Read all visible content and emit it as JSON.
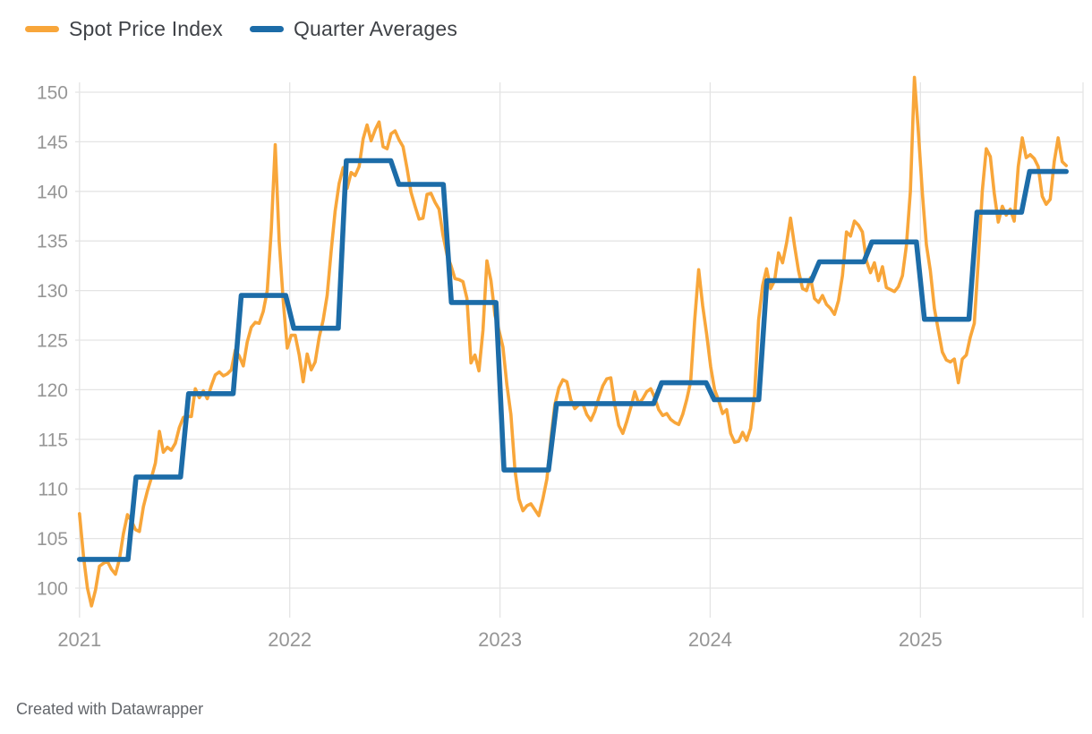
{
  "legend": {
    "items": [
      {
        "label": "Spot Price Index",
        "color": "#F8A63A"
      },
      {
        "label": "Quarter Averages",
        "color": "#1C6CA8"
      }
    ]
  },
  "footer": {
    "text": "Created with Datawrapper"
  },
  "colors": {
    "background": "#ffffff",
    "grid": "#e4e4e4",
    "axis_text": "#969696",
    "legend_text": "#3f4247",
    "footer_text": "#63666b",
    "spot_line": "#F8A63A",
    "quarter_line": "#1C6CA8"
  },
  "chart_data": {
    "type": "line",
    "title": "",
    "xlabel": "",
    "ylabel": "",
    "grid": true,
    "legend_position": "top-left",
    "x_axis": {
      "tick_labels": [
        "2021",
        "2022",
        "2023",
        "2024",
        "2025"
      ],
      "unit": "year"
    },
    "y_axis": {
      "tick_values": [
        100,
        105,
        110,
        115,
        120,
        125,
        130,
        135,
        140,
        145,
        150
      ],
      "range": [
        97,
        152.5
      ]
    },
    "series": [
      {
        "name": "Spot Price Index",
        "type": "line",
        "cadence": "weekly",
        "color": "#F8A63A",
        "values": [
          107.5,
          103.2,
          100.0,
          98.2,
          99.8,
          102.2,
          102.5,
          102.7,
          101.9,
          101.4,
          102.9,
          105.5,
          107.4,
          106.8,
          105.9,
          105.7,
          108.2,
          109.8,
          111.1,
          112.6,
          115.8,
          113.7,
          114.2,
          113.9,
          114.6,
          116.2,
          117.2,
          117.3,
          117.3,
          120.1,
          119.2,
          119.9,
          119.1,
          120.4,
          121.5,
          121.8,
          121.4,
          121.6,
          122.0,
          124.0,
          123.4,
          122.4,
          124.8,
          126.3,
          126.8,
          126.7,
          127.9,
          130.0,
          136.0,
          144.7,
          135.0,
          129.0,
          124.2,
          125.5,
          125.5,
          123.5,
          120.8,
          123.6,
          122.0,
          122.8,
          125.3,
          127.0,
          129.5,
          134.0,
          138.0,
          140.8,
          142.4,
          140.3,
          141.9,
          141.6,
          142.5,
          145.3,
          146.7,
          145.1,
          146.2,
          147.0,
          144.5,
          144.3,
          145.8,
          146.1,
          145.2,
          144.5,
          142.3,
          139.9,
          138.5,
          137.2,
          137.3,
          139.7,
          139.8,
          138.9,
          138.2,
          135.6,
          133.6,
          132.5,
          131.2,
          131.1,
          130.9,
          129.2,
          122.7,
          123.5,
          121.9,
          126.0,
          133.0,
          131.0,
          127.5,
          126.0,
          124.3,
          120.5,
          117.5,
          111.9,
          109.0,
          107.8,
          108.3,
          108.5,
          107.9,
          107.3,
          109.0,
          111.0,
          115.0,
          118.5,
          120.2,
          121.0,
          120.8,
          119.0,
          118.1,
          118.5,
          118.6,
          117.5,
          116.9,
          117.8,
          119.2,
          120.4,
          121.1,
          121.2,
          118.5,
          116.4,
          115.6,
          116.8,
          118.2,
          119.8,
          118.6,
          119.1,
          119.8,
          120.1,
          119.2,
          118.0,
          117.4,
          117.6,
          117.0,
          116.7,
          116.5,
          117.5,
          119.0,
          120.8,
          127.0,
          132.1,
          128.5,
          125.6,
          122.3,
          120.0,
          118.9,
          117.6,
          118.0,
          115.6,
          114.7,
          114.8,
          115.7,
          114.9,
          116.1,
          119.5,
          127.0,
          130.5,
          132.2,
          130.2,
          131.0,
          133.8,
          132.8,
          134.8,
          137.3,
          134.5,
          132.0,
          130.2,
          130.0,
          131.3,
          129.2,
          128.8,
          129.5,
          128.6,
          128.2,
          127.6,
          129.0,
          131.5,
          135.9,
          135.5,
          137.0,
          136.6,
          135.9,
          133.0,
          131.8,
          132.8,
          131.0,
          132.4,
          130.3,
          130.1,
          129.9,
          130.4,
          131.5,
          134.5,
          140.0,
          151.5,
          146.0,
          139.8,
          134.6,
          132.0,
          128.2,
          126.0,
          123.8,
          123.0,
          122.8,
          123.1,
          120.7,
          123.1,
          123.5,
          125.3,
          126.7,
          133.0,
          140.0,
          144.3,
          143.5,
          139.8,
          136.9,
          138.5,
          137.6,
          138.2,
          137.0,
          142.5,
          145.4,
          143.4,
          143.7,
          143.3,
          142.5,
          139.5,
          138.7,
          139.2,
          143.0,
          145.4,
          143.0,
          142.6
        ]
      },
      {
        "name": "Quarter Averages",
        "type": "step",
        "cadence": "quarterly",
        "color": "#1C6CA8",
        "quarters": [
          "2021 Q1",
          "2021 Q2",
          "2021 Q3",
          "2021 Q4",
          "2022 Q1",
          "2022 Q2",
          "2022 Q3",
          "2022 Q4",
          "2023 Q1",
          "2023 Q2",
          "2023 Q3",
          "2023 Q4",
          "2024 Q1",
          "2024 Q2",
          "2024 Q3",
          "2024 Q4",
          "2025 Q1",
          "2025 Q2",
          "2025 Q3"
        ],
        "values": [
          102.9,
          111.2,
          119.6,
          129.5,
          126.2,
          143.1,
          140.7,
          128.8,
          111.9,
          118.6,
          118.6,
          120.7,
          119.0,
          131.0,
          132.9,
          134.9,
          127.1,
          137.9,
          142.0
        ]
      }
    ]
  }
}
